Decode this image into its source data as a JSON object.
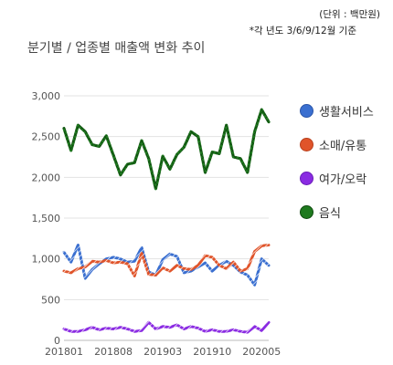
{
  "unit_note": "(단위 : 백만원)",
  "period_note": "*각 년도 3/6/9/12월 기준",
  "chart_data": {
    "type": "line",
    "title": "분기별 / 업종별 매출액 변화 추이",
    "xlabel": "",
    "ylabel": "",
    "ylim": [
      0,
      3000
    ],
    "yticks": [
      0,
      500,
      1000,
      1500,
      2000,
      2500,
      3000
    ],
    "ytick_labels": [
      "0",
      "500",
      "1,000",
      "1,500",
      "2,000",
      "2,500",
      "3,000"
    ],
    "xtick_labels": [
      "201801",
      "201808",
      "201903",
      "201910",
      "202005"
    ],
    "xtick_index": [
      0,
      7,
      14,
      21,
      28
    ],
    "x": [
      "201801",
      "201802",
      "201803",
      "201804",
      "201805",
      "201806",
      "201807",
      "201808",
      "201809",
      "201810",
      "201811",
      "201812",
      "201901",
      "201902",
      "201903",
      "201904",
      "201905",
      "201906",
      "201907",
      "201908",
      "201909",
      "201910",
      "201911",
      "201912",
      "202001",
      "202002",
      "202003",
      "202004",
      "202005",
      "202006"
    ],
    "grid": true,
    "legend_position": "right",
    "series": [
      {
        "name": "생활서비스",
        "color": "#3a6fd0",
        "values": [
          1080,
          960,
          1170,
          760,
          870,
          940,
          1000,
          1020,
          1000,
          960,
          970,
          1140,
          840,
          800,
          990,
          1060,
          1030,
          830,
          850,
          900,
          950,
          850,
          920,
          970,
          920,
          840,
          800,
          680,
          1000,
          920
        ]
      },
      {
        "name": "소매/유통",
        "color": "#e0542a",
        "values": [
          850,
          830,
          880,
          900,
          970,
          960,
          980,
          950,
          960,
          940,
          790,
          1070,
          810,
          800,
          890,
          850,
          920,
          880,
          870,
          920,
          1040,
          1020,
          920,
          880,
          960,
          850,
          880,
          1090,
          1160,
          1170
        ]
      },
      {
        "name": "여가/오락",
        "color": "#8a2be2",
        "values": [
          140,
          110,
          110,
          130,
          160,
          130,
          150,
          140,
          160,
          140,
          110,
          120,
          220,
          140,
          170,
          160,
          190,
          140,
          170,
          150,
          110,
          130,
          110,
          110,
          130,
          110,
          100,
          170,
          120,
          220
        ]
      },
      {
        "name": "음식",
        "color": "#1f7a1f",
        "values": [
          2600,
          2330,
          2640,
          2560,
          2400,
          2380,
          2510,
          2270,
          2030,
          2160,
          2180,
          2450,
          2230,
          1860,
          2260,
          2100,
          2280,
          2370,
          2560,
          2500,
          2060,
          2310,
          2290,
          2640,
          2250,
          2230,
          2060,
          2560,
          2830,
          2680
        ]
      }
    ]
  }
}
